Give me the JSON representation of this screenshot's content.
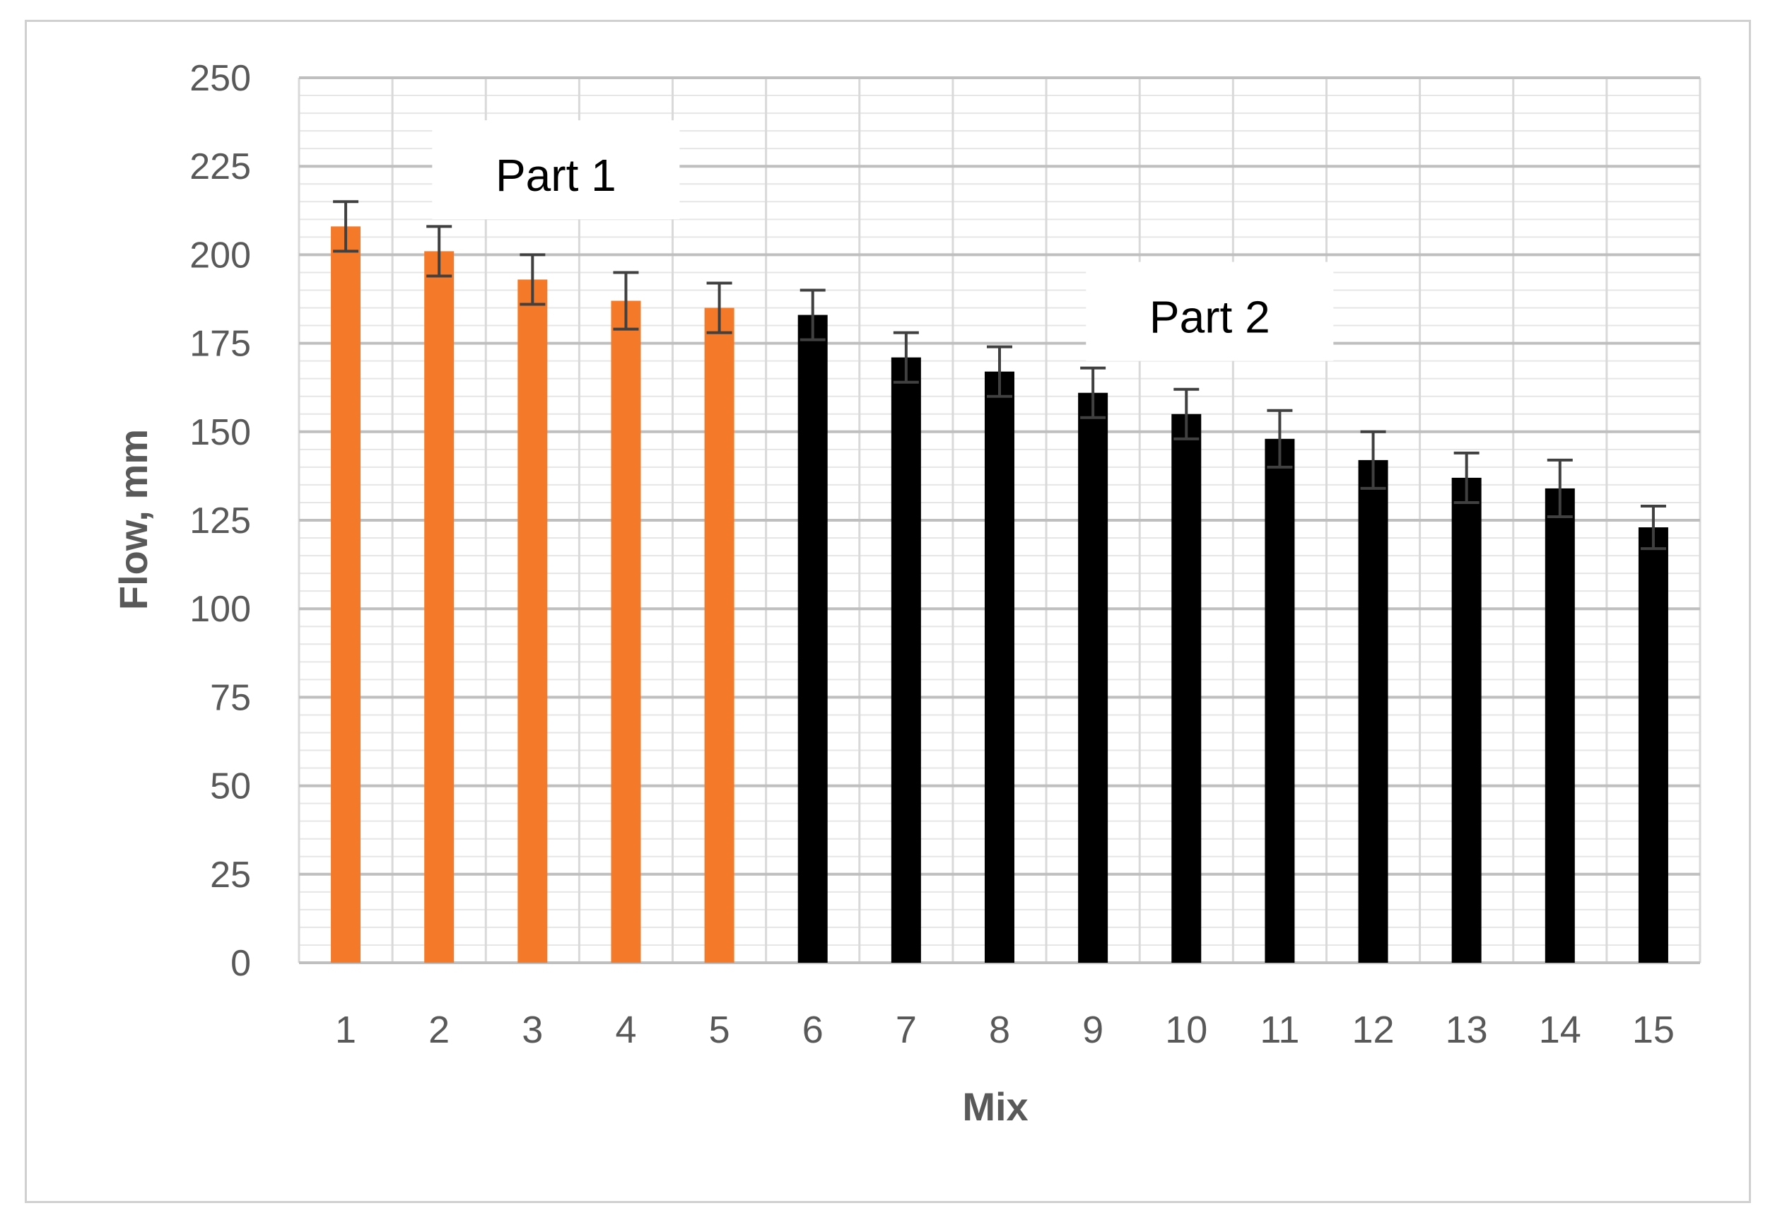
{
  "chart_data": {
    "type": "bar",
    "categories": [
      "1",
      "2",
      "3",
      "4",
      "5",
      "6",
      "7",
      "8",
      "9",
      "10",
      "11",
      "12",
      "13",
      "14",
      "15"
    ],
    "values": [
      208,
      201,
      193,
      187,
      185,
      183,
      171,
      167,
      161,
      155,
      148,
      142,
      137,
      134,
      123
    ],
    "error": [
      7,
      7,
      7,
      8,
      7,
      7,
      7,
      7,
      7,
      7,
      8,
      8,
      7,
      8,
      6
    ],
    "bar_colors": [
      "#F47A2A",
      "#F47A2A",
      "#F47A2A",
      "#F47A2A",
      "#F47A2A",
      "#000000",
      "#000000",
      "#000000",
      "#000000",
      "#000000",
      "#000000",
      "#000000",
      "#000000",
      "#000000",
      "#000000"
    ],
    "xlabel": "Mix",
    "ylabel": "Flow, mm",
    "ylim": [
      0,
      250
    ],
    "yticks": [
      0,
      25,
      50,
      75,
      100,
      125,
      150,
      175,
      200,
      225,
      250
    ],
    "grid": true,
    "annotations": [
      {
        "text": "Part 1",
        "at_category": "3",
        "at_value": 222
      },
      {
        "text": "Part 2",
        "at_category": "10",
        "at_value": 182
      }
    ]
  }
}
